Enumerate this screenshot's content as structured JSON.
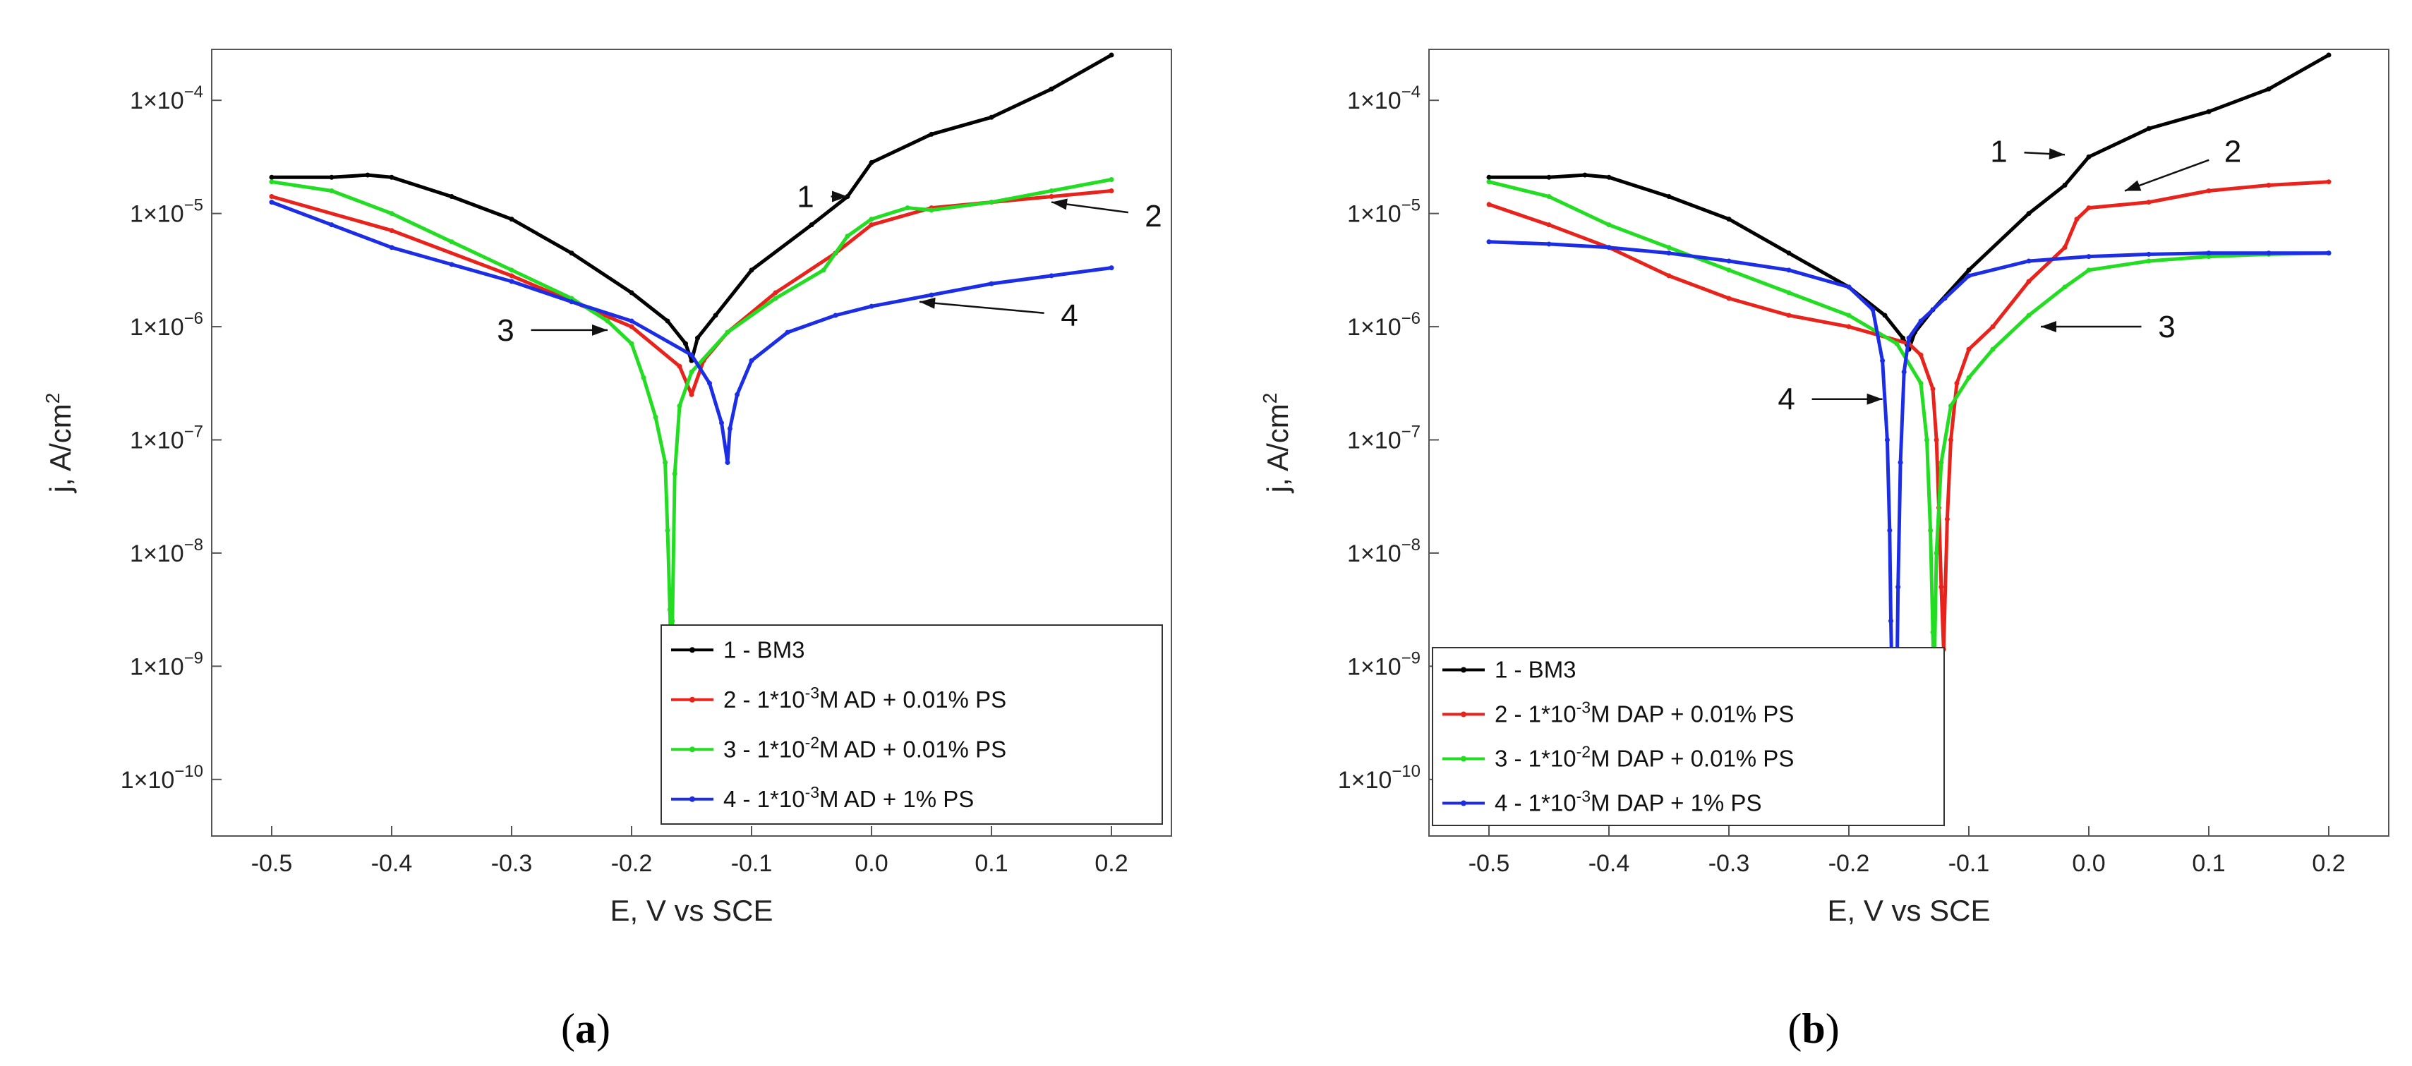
{
  "figure": {
    "panels": [
      {
        "caption_letter": "a"
      },
      {
        "caption_letter": "b"
      }
    ]
  },
  "chart_data": [
    {
      "type": "line",
      "yscale": "log",
      "xlabel": "E, V vs SCE",
      "ylabel": "j, A/cm",
      "ylabel_superscript": "2",
      "xlim": [
        -0.55,
        0.25
      ],
      "ylim_exponents": [
        -10.5,
        -3.55
      ],
      "x_ticks": [
        -0.5,
        -0.4,
        -0.3,
        -0.2,
        -0.1,
        0.0,
        0.1,
        0.2
      ],
      "x_tick_labels": [
        "-0.5",
        "-0.4",
        "-0.3",
        "-0.2",
        "-0.1",
        "0.0",
        "0.1",
        "0.2"
      ],
      "y_tick_exponents": [
        -10,
        -9,
        -8,
        -7,
        -6,
        -5,
        -4
      ],
      "y_tick_base": "1×10",
      "y_tick_exp_labels": [
        "−10",
        "−9",
        "−8",
        "−7",
        "−6",
        "−5",
        "−4"
      ],
      "series": [
        {
          "name": "1",
          "color": "#000000",
          "log_points": [
            [
              -0.5,
              -4.68
            ],
            [
              -0.45,
              -4.68
            ],
            [
              -0.42,
              -4.66
            ],
            [
              -0.4,
              -4.68
            ],
            [
              -0.35,
              -4.85
            ],
            [
              -0.3,
              -5.05
            ],
            [
              -0.25,
              -5.35
            ],
            [
              -0.2,
              -5.7
            ],
            [
              -0.17,
              -5.95
            ],
            [
              -0.155,
              -6.15
            ],
            [
              -0.15,
              -6.3
            ],
            [
              -0.145,
              -6.1
            ],
            [
              -0.13,
              -5.9
            ],
            [
              -0.1,
              -5.5
            ],
            [
              -0.05,
              -5.1
            ],
            [
              -0.02,
              -4.85
            ],
            [
              0.0,
              -4.55
            ],
            [
              0.05,
              -4.3
            ],
            [
              0.1,
              -4.15
            ],
            [
              0.15,
              -3.9
            ],
            [
              0.2,
              -3.6
            ]
          ]
        },
        {
          "name": "2",
          "color": "#e8231c",
          "log_points": [
            [
              -0.5,
              -4.85
            ],
            [
              -0.4,
              -5.15
            ],
            [
              -0.3,
              -5.55
            ],
            [
              -0.2,
              -6.0
            ],
            [
              -0.16,
              -6.35
            ],
            [
              -0.15,
              -6.6
            ],
            [
              -0.14,
              -6.3
            ],
            [
              -0.12,
              -6.05
            ],
            [
              -0.08,
              -5.7
            ],
            [
              -0.03,
              -5.35
            ],
            [
              0.0,
              -5.1
            ],
            [
              0.05,
              -4.95
            ],
            [
              0.1,
              -4.9
            ],
            [
              0.15,
              -4.85
            ],
            [
              0.2,
              -4.8
            ]
          ]
        },
        {
          "name": "3",
          "color": "#22dd22",
          "log_points": [
            [
              -0.5,
              -4.72
            ],
            [
              -0.45,
              -4.8
            ],
            [
              -0.4,
              -5.0
            ],
            [
              -0.35,
              -5.25
            ],
            [
              -0.3,
              -5.5
            ],
            [
              -0.25,
              -5.75
            ],
            [
              -0.22,
              -5.95
            ],
            [
              -0.2,
              -6.15
            ],
            [
              -0.19,
              -6.45
            ],
            [
              -0.18,
              -6.8
            ],
            [
              -0.172,
              -7.2
            ],
            [
              -0.17,
              -7.8
            ],
            [
              -0.168,
              -8.5
            ],
            [
              -0.167,
              -9.1
            ],
            [
              -0.166,
              -8.6
            ],
            [
              -0.164,
              -7.3
            ],
            [
              -0.16,
              -6.7
            ],
            [
              -0.15,
              -6.4
            ],
            [
              -0.12,
              -6.05
            ],
            [
              -0.08,
              -5.75
            ],
            [
              -0.04,
              -5.5
            ],
            [
              -0.02,
              -5.2
            ],
            [
              0.0,
              -5.05
            ],
            [
              0.03,
              -4.95
            ],
            [
              0.05,
              -4.97
            ],
            [
              0.1,
              -4.9
            ],
            [
              0.15,
              -4.8
            ],
            [
              0.2,
              -4.7
            ]
          ]
        },
        {
          "name": "4",
          "color": "#1c2de6",
          "log_points": [
            [
              -0.5,
              -4.9
            ],
            [
              -0.45,
              -5.1
            ],
            [
              -0.4,
              -5.3
            ],
            [
              -0.35,
              -5.45
            ],
            [
              -0.3,
              -5.6
            ],
            [
              -0.25,
              -5.78
            ],
            [
              -0.2,
              -5.95
            ],
            [
              -0.15,
              -6.25
            ],
            [
              -0.135,
              -6.5
            ],
            [
              -0.125,
              -6.85
            ],
            [
              -0.12,
              -7.2
            ],
            [
              -0.118,
              -6.9
            ],
            [
              -0.112,
              -6.6
            ],
            [
              -0.1,
              -6.3
            ],
            [
              -0.07,
              -6.05
            ],
            [
              -0.03,
              -5.9
            ],
            [
              0.0,
              -5.82
            ],
            [
              0.05,
              -5.72
            ],
            [
              0.1,
              -5.62
            ],
            [
              0.15,
              -5.55
            ],
            [
              0.2,
              -5.48
            ]
          ]
        }
      ],
      "annotations": [
        {
          "label": "1",
          "text_x": -0.055,
          "text_y": -4.85,
          "arrow_to": [
            -0.02,
            -4.85
          ]
        },
        {
          "label": "2",
          "text_x": 0.235,
          "text_y": -5.02,
          "arrow_to": [
            0.15,
            -4.9
          ]
        },
        {
          "label": "3",
          "text_x": -0.305,
          "text_y": -6.03,
          "arrow_to": [
            -0.22,
            -6.03
          ]
        },
        {
          "label": "4",
          "text_x": 0.165,
          "text_y": -5.9,
          "arrow_to": [
            0.04,
            -5.78
          ]
        }
      ],
      "legend": {
        "placement": "bottom-right",
        "entries": [
          {
            "pre": "1 - BM3",
            "sup": "",
            "post": "",
            "color": "#000000"
          },
          {
            "pre": "2 - 1*10",
            "sup": "-3",
            "post": "M AD + 0.01% PS",
            "color": "#e8231c"
          },
          {
            "pre": "3 - 1*10",
            "sup": "-2",
            "post": "M AD + 0.01% PS",
            "color": "#22dd22"
          },
          {
            "pre": "4 - 1*10",
            "sup": "-3",
            "post": "M AD + 1% PS",
            "color": "#1c2de6"
          }
        ]
      }
    },
    {
      "type": "line",
      "yscale": "log",
      "xlabel": "E, V vs SCE",
      "ylabel": "j, A/cm",
      "ylabel_superscript": "2",
      "xlim": [
        -0.55,
        0.25
      ],
      "ylim_exponents": [
        -10.5,
        -3.55
      ],
      "x_ticks": [
        -0.5,
        -0.4,
        -0.3,
        -0.2,
        -0.1,
        0.0,
        0.1,
        0.2
      ],
      "x_tick_labels": [
        "-0.5",
        "-0.4",
        "-0.3",
        "-0.2",
        "-0.1",
        "0.0",
        "0.1",
        "0.2"
      ],
      "y_tick_exponents": [
        -10,
        -9,
        -8,
        -7,
        -6,
        -5,
        -4
      ],
      "y_tick_base": "1×10",
      "y_tick_exp_labels": [
        "−10",
        "−9",
        "−8",
        "−7",
        "−6",
        "−5",
        "−4"
      ],
      "series": [
        {
          "name": "1",
          "color": "#000000",
          "log_points": [
            [
              -0.5,
              -4.68
            ],
            [
              -0.45,
              -4.68
            ],
            [
              -0.42,
              -4.66
            ],
            [
              -0.4,
              -4.68
            ],
            [
              -0.35,
              -4.85
            ],
            [
              -0.3,
              -5.05
            ],
            [
              -0.25,
              -5.35
            ],
            [
              -0.2,
              -5.65
            ],
            [
              -0.17,
              -5.9
            ],
            [
              -0.155,
              -6.1
            ],
            [
              -0.15,
              -6.2
            ],
            [
              -0.145,
              -6.05
            ],
            [
              -0.13,
              -5.85
            ],
            [
              -0.1,
              -5.5
            ],
            [
              -0.05,
              -5.0
            ],
            [
              -0.02,
              -4.75
            ],
            [
              0.0,
              -4.5
            ],
            [
              0.05,
              -4.25
            ],
            [
              0.1,
              -4.1
            ],
            [
              0.15,
              -3.9
            ],
            [
              0.2,
              -3.6
            ]
          ]
        },
        {
          "name": "2",
          "color": "#e8231c",
          "log_points": [
            [
              -0.5,
              -4.92
            ],
            [
              -0.45,
              -5.1
            ],
            [
              -0.4,
              -5.3
            ],
            [
              -0.35,
              -5.55
            ],
            [
              -0.3,
              -5.75
            ],
            [
              -0.25,
              -5.9
            ],
            [
              -0.2,
              -6.0
            ],
            [
              -0.15,
              -6.15
            ],
            [
              -0.14,
              -6.25
            ],
            [
              -0.13,
              -6.55
            ],
            [
              -0.127,
              -7.0
            ],
            [
              -0.125,
              -7.6
            ],
            [
              -0.123,
              -8.3
            ],
            [
              -0.121,
              -8.85
            ],
            [
              -0.118,
              -7.7
            ],
            [
              -0.115,
              -7.0
            ],
            [
              -0.11,
              -6.5
            ],
            [
              -0.1,
              -6.2
            ],
            [
              -0.08,
              -6.0
            ],
            [
              -0.05,
              -5.6
            ],
            [
              -0.02,
              -5.3
            ],
            [
              -0.01,
              -5.05
            ],
            [
              0.0,
              -4.95
            ],
            [
              0.05,
              -4.9
            ],
            [
              0.1,
              -4.8
            ],
            [
              0.15,
              -4.75
            ],
            [
              0.2,
              -4.72
            ]
          ]
        },
        {
          "name": "3",
          "color": "#22dd22",
          "log_points": [
            [
              -0.5,
              -4.72
            ],
            [
              -0.45,
              -4.85
            ],
            [
              -0.4,
              -5.1
            ],
            [
              -0.35,
              -5.3
            ],
            [
              -0.3,
              -5.5
            ],
            [
              -0.25,
              -5.7
            ],
            [
              -0.2,
              -5.9
            ],
            [
              -0.16,
              -6.15
            ],
            [
              -0.14,
              -6.5
            ],
            [
              -0.135,
              -7.0
            ],
            [
              -0.132,
              -7.8
            ],
            [
              -0.13,
              -8.7
            ],
            [
              -0.129,
              -9.15
            ],
            [
              -0.127,
              -8.0
            ],
            [
              -0.123,
              -7.2
            ],
            [
              -0.115,
              -6.7
            ],
            [
              -0.1,
              -6.45
            ],
            [
              -0.08,
              -6.2
            ],
            [
              -0.05,
              -5.9
            ],
            [
              -0.02,
              -5.65
            ],
            [
              0.0,
              -5.5
            ],
            [
              0.05,
              -5.42
            ],
            [
              0.1,
              -5.38
            ],
            [
              0.15,
              -5.36
            ],
            [
              0.2,
              -5.35
            ]
          ]
        },
        {
          "name": "4",
          "color": "#1c2de6",
          "log_points": [
            [
              -0.5,
              -5.25
            ],
            [
              -0.45,
              -5.27
            ],
            [
              -0.4,
              -5.3
            ],
            [
              -0.35,
              -5.35
            ],
            [
              -0.3,
              -5.42
            ],
            [
              -0.25,
              -5.5
            ],
            [
              -0.2,
              -5.65
            ],
            [
              -0.18,
              -5.85
            ],
            [
              -0.172,
              -6.3
            ],
            [
              -0.168,
              -7.0
            ],
            [
              -0.166,
              -7.8
            ],
            [
              -0.165,
              -8.6
            ],
            [
              -0.164,
              -9.15
            ],
            [
              -0.16,
              -9.15
            ],
            [
              -0.159,
              -8.3
            ],
            [
              -0.157,
              -7.2
            ],
            [
              -0.154,
              -6.4
            ],
            [
              -0.15,
              -6.1
            ],
            [
              -0.14,
              -5.95
            ],
            [
              -0.12,
              -5.75
            ],
            [
              -0.1,
              -5.55
            ],
            [
              -0.05,
              -5.42
            ],
            [
              0.0,
              -5.38
            ],
            [
              0.05,
              -5.36
            ],
            [
              0.1,
              -5.35
            ],
            [
              0.15,
              -5.35
            ],
            [
              0.2,
              -5.35
            ]
          ]
        }
      ],
      "annotations": [
        {
          "label": "1",
          "text_x": -0.075,
          "text_y": -4.45,
          "arrow_to": [
            -0.02,
            -4.48
          ]
        },
        {
          "label": "2",
          "text_x": 0.12,
          "text_y": -4.45,
          "arrow_to": [
            0.03,
            -4.8
          ]
        },
        {
          "label": "3",
          "text_x": 0.065,
          "text_y": -6.0,
          "arrow_to": [
            -0.04,
            -6.0
          ]
        },
        {
          "label": "4",
          "text_x": -0.252,
          "text_y": -6.64,
          "arrow_to": [
            -0.172,
            -6.64
          ]
        }
      ],
      "legend": {
        "placement": "bottom-left",
        "entries": [
          {
            "pre": "1 - BM3",
            "sup": "",
            "post": "",
            "color": "#000000"
          },
          {
            "pre": "2 - 1*10",
            "sup": "-3",
            "post": "M DAP + 0.01% PS",
            "color": "#e8231c"
          },
          {
            "pre": "3 - 1*10",
            "sup": "-2",
            "post": "M DAP + 0.01% PS",
            "color": "#22dd22"
          },
          {
            "pre": "4 - 1*10",
            "sup": "-3",
            "post": "M DAP + 1% PS",
            "color": "#1c2de6"
          }
        ]
      }
    }
  ]
}
